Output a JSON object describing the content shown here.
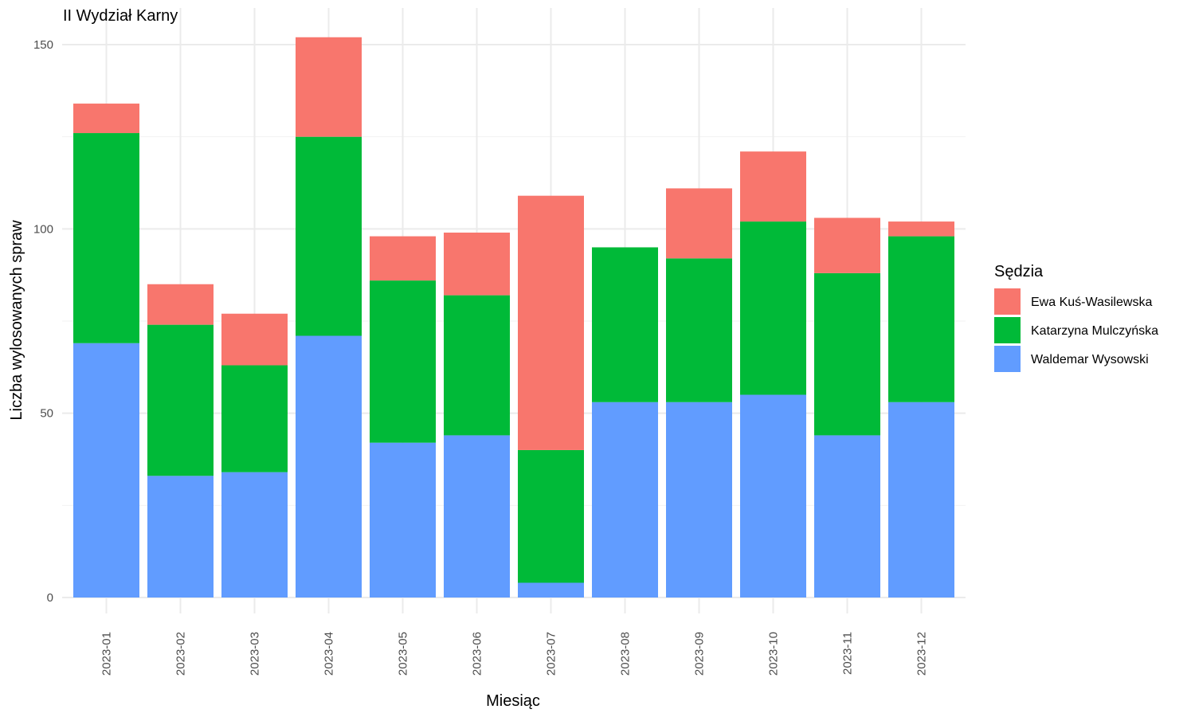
{
  "chart_data": {
    "type": "bar",
    "stacked": true,
    "title": "II Wydział Karny",
    "xlabel": "Miesiąc",
    "ylabel": "Liczba wylosowanych spraw",
    "ylim": [
      0,
      160
    ],
    "yticks": [
      0,
      50,
      100,
      150
    ],
    "grid": true,
    "legend_title": "Sędzia",
    "legend_position": "right",
    "categories": [
      "2023-01",
      "2023-02",
      "2023-03",
      "2023-04",
      "2023-05",
      "2023-06",
      "2023-07",
      "2023-08",
      "2023-09",
      "2023-10",
      "2023-11",
      "2023-12"
    ],
    "series": [
      {
        "name": "Waldemar Wysowski",
        "color": "#619CFF",
        "values": [
          69,
          33,
          34,
          71,
          42,
          44,
          4,
          53,
          53,
          55,
          44,
          53
        ]
      },
      {
        "name": "Katarzyna Mulczyńska",
        "color": "#00BA38",
        "values": [
          57,
          41,
          29,
          54,
          44,
          38,
          36,
          42,
          39,
          47,
          44,
          45
        ]
      },
      {
        "name": "Ewa Kuś-Wasilewska",
        "color": "#F8766D",
        "values": [
          8,
          11,
          14,
          27,
          12,
          17,
          69,
          0,
          19,
          19,
          15,
          4
        ]
      }
    ],
    "legend_order": [
      "Ewa Kuś-Wasilewska",
      "Katarzyna Mulczyńska",
      "Waldemar Wysowski"
    ]
  }
}
